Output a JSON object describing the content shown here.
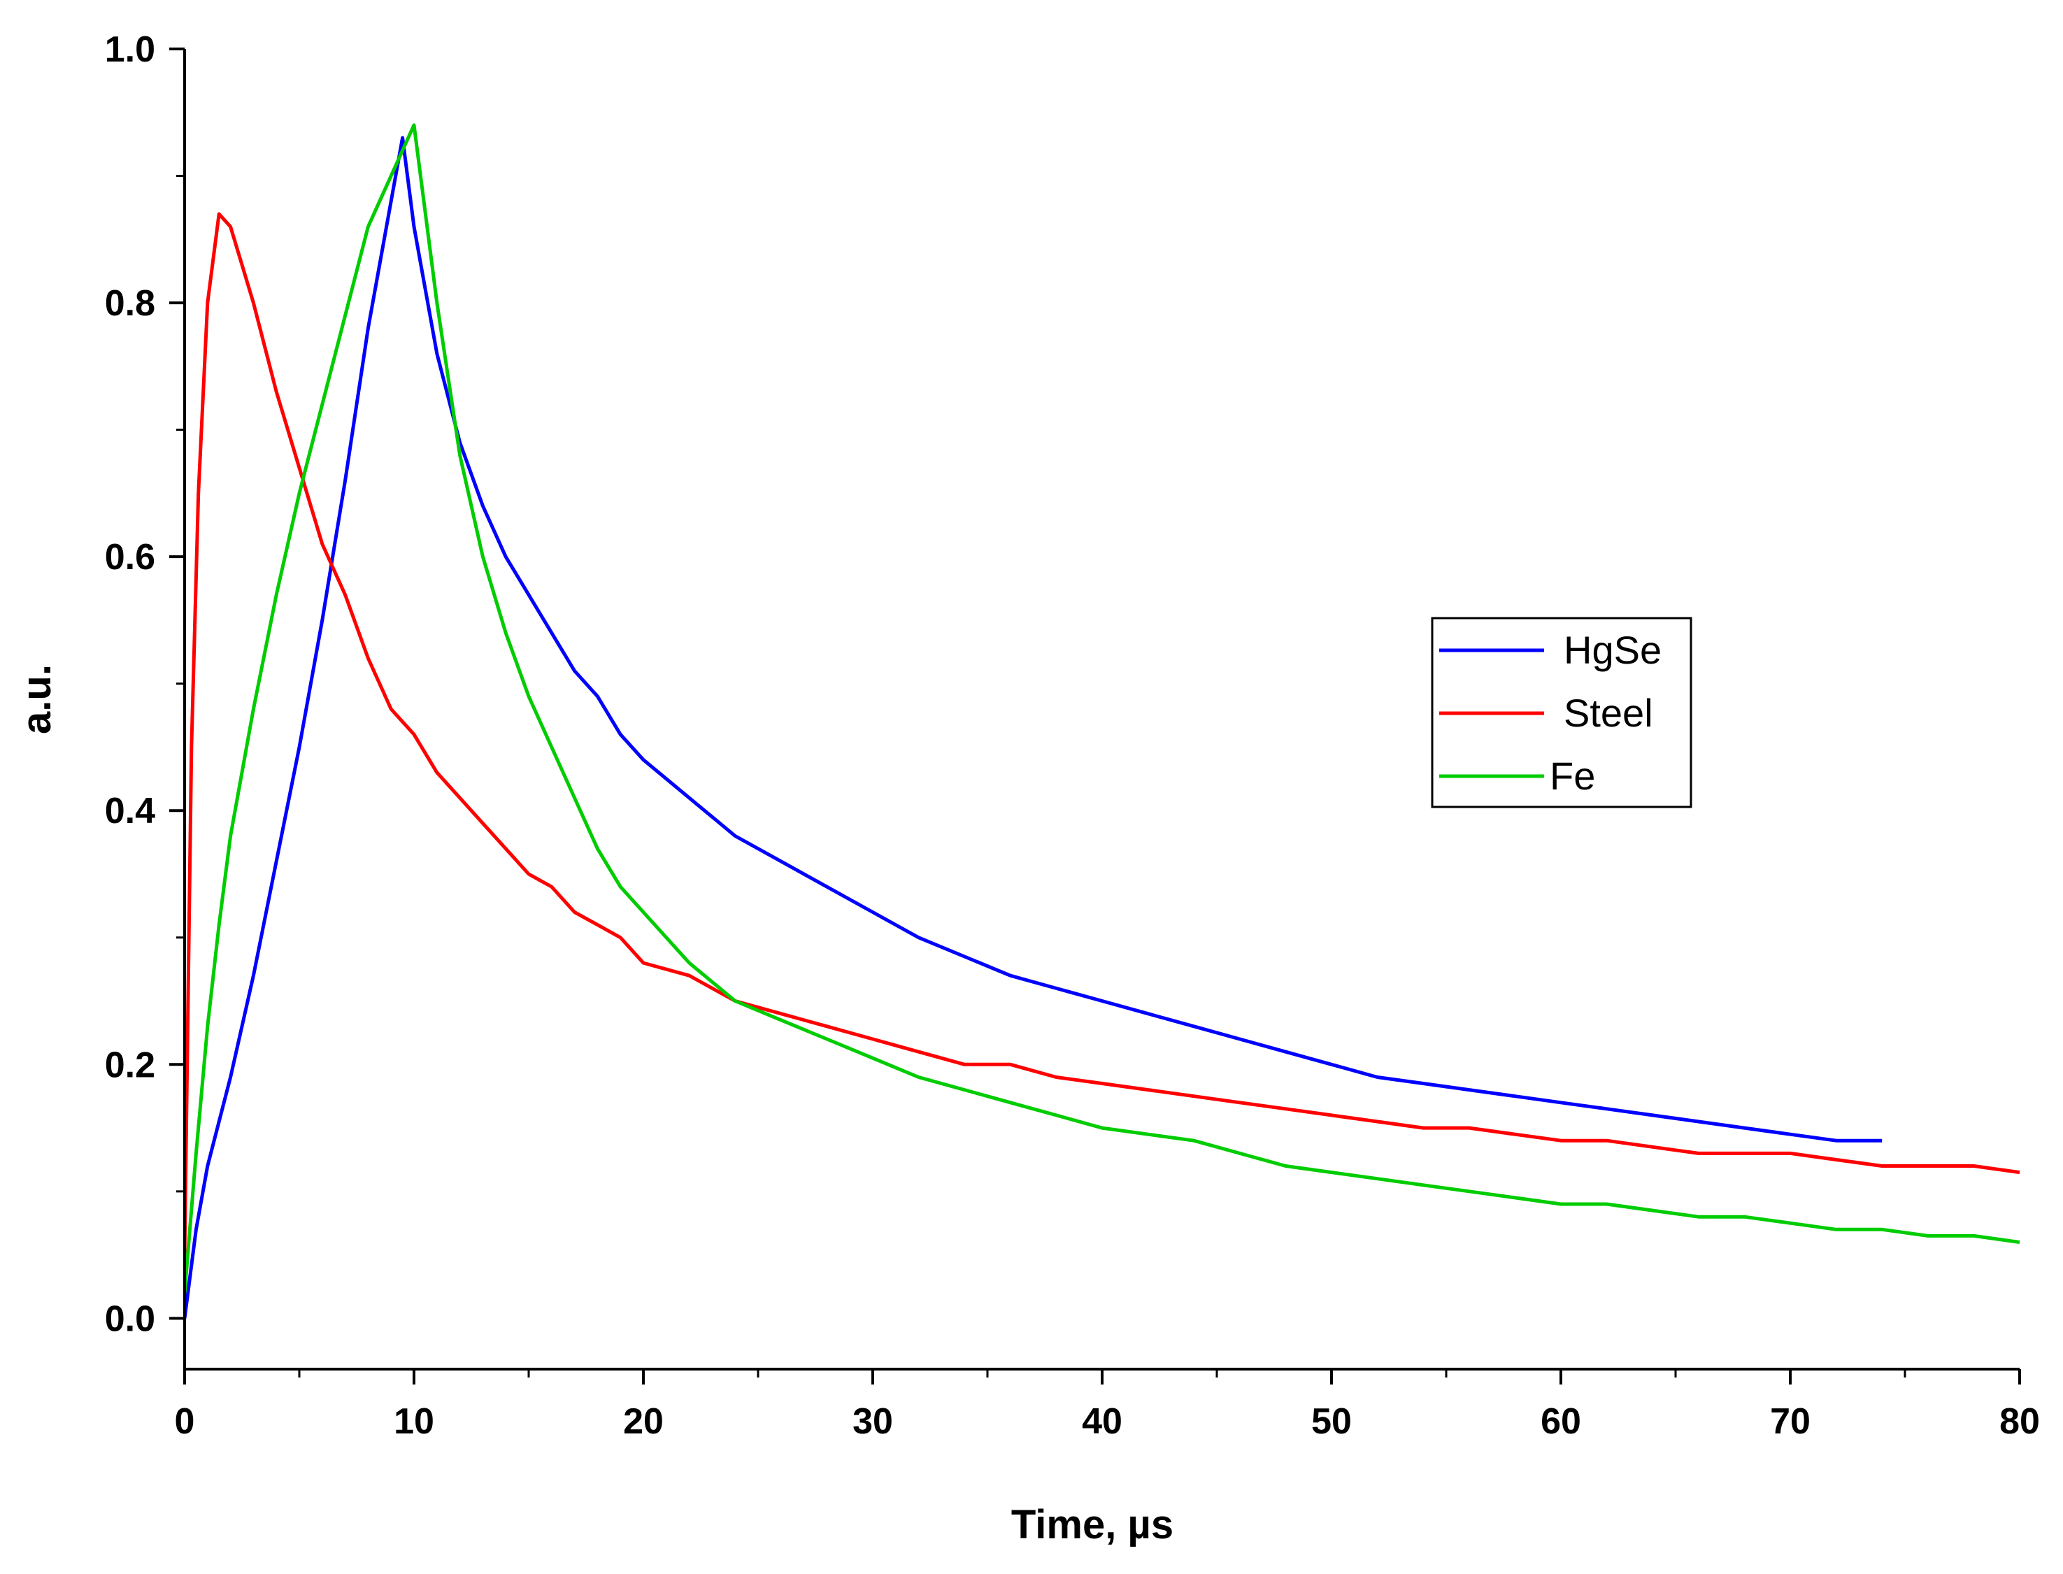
{
  "chart_data": {
    "type": "line",
    "title": "",
    "xlabel": "Time, µs",
    "ylabel": "a.u.",
    "xlim": [
      0,
      80
    ],
    "ylim": [
      -0.04,
      1.0
    ],
    "xticks": [
      0,
      10,
      20,
      30,
      40,
      50,
      60,
      70,
      80
    ],
    "xtick_labels": [
      "0",
      "10",
      "20",
      "30",
      "40",
      "50",
      "60",
      "70",
      "80"
    ],
    "yticks": [
      0.0,
      0.2,
      0.4,
      0.6,
      0.8,
      1.0
    ],
    "ytick_labels": [
      "0.0",
      "0.2",
      "0.4",
      "0.6",
      "0.8",
      "1.0"
    ],
    "grid": false,
    "legend_position": "center-right",
    "series": [
      {
        "name": "HgSe",
        "color": "#0000ff",
        "x": [
          0,
          0.5,
          1,
          2,
          3,
          4,
          5,
          6,
          7,
          8,
          9,
          9.5,
          10,
          11,
          12,
          13,
          14,
          15,
          16,
          17,
          18,
          19,
          20,
          22,
          24,
          26,
          28,
          30,
          32,
          34,
          36,
          38,
          40,
          42,
          44,
          46,
          48,
          50,
          52,
          54,
          56,
          58,
          60,
          62,
          64,
          66,
          68,
          70,
          72,
          74
        ],
        "y": [
          0.0,
          0.07,
          0.12,
          0.19,
          0.27,
          0.36,
          0.45,
          0.55,
          0.66,
          0.78,
          0.88,
          0.93,
          0.86,
          0.76,
          0.69,
          0.64,
          0.6,
          0.57,
          0.54,
          0.51,
          0.49,
          0.46,
          0.44,
          0.41,
          0.38,
          0.36,
          0.34,
          0.32,
          0.3,
          0.285,
          0.27,
          0.26,
          0.25,
          0.24,
          0.23,
          0.22,
          0.21,
          0.2,
          0.19,
          0.185,
          0.18,
          0.175,
          0.17,
          0.165,
          0.16,
          0.155,
          0.15,
          0.145,
          0.14,
          0.14
        ]
      },
      {
        "name": "Steel",
        "color": "#ff0000",
        "x": [
          0,
          0.3,
          0.6,
          1,
          1.5,
          2,
          2.5,
          3,
          4,
          5,
          6,
          7,
          8,
          9,
          10,
          11,
          12,
          13,
          14,
          15,
          16,
          17,
          18,
          19,
          20,
          22,
          24,
          26,
          28,
          30,
          32,
          34,
          36,
          38,
          40,
          42,
          44,
          46,
          48,
          50,
          52,
          54,
          56,
          58,
          60,
          62,
          64,
          66,
          68,
          70,
          72,
          74,
          76,
          78,
          80
        ],
        "y": [
          0.05,
          0.45,
          0.65,
          0.8,
          0.87,
          0.86,
          0.83,
          0.8,
          0.73,
          0.67,
          0.61,
          0.57,
          0.52,
          0.48,
          0.46,
          0.43,
          0.41,
          0.39,
          0.37,
          0.35,
          0.34,
          0.32,
          0.31,
          0.3,
          0.28,
          0.27,
          0.25,
          0.24,
          0.23,
          0.22,
          0.21,
          0.2,
          0.2,
          0.19,
          0.185,
          0.18,
          0.175,
          0.17,
          0.165,
          0.16,
          0.155,
          0.15,
          0.15,
          0.145,
          0.14,
          0.14,
          0.135,
          0.13,
          0.13,
          0.13,
          0.125,
          0.12,
          0.12,
          0.12,
          0.115
        ]
      },
      {
        "name": "Fe",
        "color": "#00cc00",
        "x": [
          0,
          0.5,
          1,
          1.5,
          2,
          3,
          4,
          5,
          6,
          7,
          8,
          9,
          10,
          11,
          12,
          13,
          14,
          15,
          16,
          17,
          18,
          19,
          20,
          22,
          24,
          26,
          28,
          30,
          32,
          34,
          36,
          38,
          40,
          42,
          44,
          46,
          48,
          50,
          52,
          54,
          56,
          58,
          60,
          62,
          64,
          66,
          68,
          70,
          72,
          74,
          76,
          78,
          80
        ],
        "y": [
          0.02,
          0.13,
          0.23,
          0.31,
          0.38,
          0.48,
          0.57,
          0.65,
          0.72,
          0.79,
          0.86,
          0.9,
          0.94,
          0.8,
          0.68,
          0.6,
          0.54,
          0.49,
          0.45,
          0.41,
          0.37,
          0.34,
          0.32,
          0.28,
          0.25,
          0.235,
          0.22,
          0.205,
          0.19,
          0.18,
          0.17,
          0.16,
          0.15,
          0.145,
          0.14,
          0.13,
          0.12,
          0.115,
          0.11,
          0.105,
          0.1,
          0.095,
          0.09,
          0.09,
          0.085,
          0.08,
          0.08,
          0.075,
          0.07,
          0.07,
          0.065,
          0.065,
          0.06
        ]
      }
    ]
  }
}
